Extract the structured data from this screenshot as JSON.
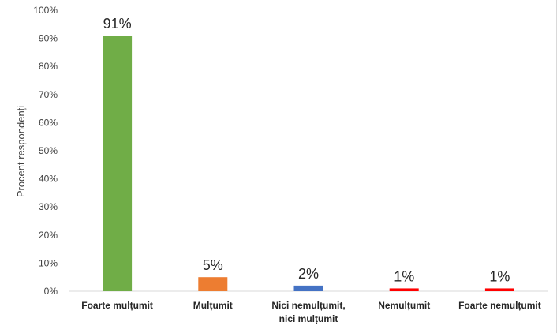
{
  "chart_data": {
    "type": "bar",
    "ylabel": "Procent respondenți",
    "ylim": [
      0,
      100
    ],
    "yticks": [
      "0%",
      "10%",
      "20%",
      "30%",
      "40%",
      "50%",
      "60%",
      "70%",
      "80%",
      "90%",
      "100%"
    ],
    "grid": false,
    "categories": [
      [
        "Foarte mulțumit"
      ],
      [
        "Mulțumit"
      ],
      [
        "Nici nemulțumit,",
        "nici mulțumit"
      ],
      [
        "Nemulțumit"
      ],
      [
        "Foarte nemulțumit"
      ]
    ],
    "values": [
      91,
      5,
      2,
      1,
      1
    ],
    "data_labels": [
      "91%",
      "5%",
      "2%",
      "1%",
      "1%"
    ],
    "colors": [
      "#70ad47",
      "#ed7d31",
      "#4472c4",
      "#ff0000",
      "#ff0000"
    ]
  }
}
